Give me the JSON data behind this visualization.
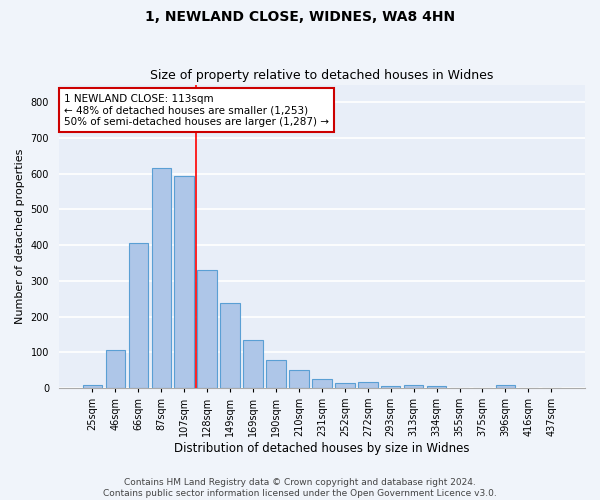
{
  "title1": "1, NEWLAND CLOSE, WIDNES, WA8 4HN",
  "title2": "Size of property relative to detached houses in Widnes",
  "xlabel": "Distribution of detached houses by size in Widnes",
  "ylabel": "Number of detached properties",
  "categories": [
    "25sqm",
    "46sqm",
    "66sqm",
    "87sqm",
    "107sqm",
    "128sqm",
    "149sqm",
    "169sqm",
    "190sqm",
    "210sqm",
    "231sqm",
    "252sqm",
    "272sqm",
    "293sqm",
    "313sqm",
    "334sqm",
    "355sqm",
    "375sqm",
    "396sqm",
    "416sqm",
    "437sqm"
  ],
  "values": [
    8,
    107,
    405,
    615,
    593,
    330,
    238,
    133,
    77,
    50,
    25,
    13,
    17,
    5,
    7,
    5,
    0,
    0,
    8,
    0,
    0
  ],
  "bar_color": "#aec6e8",
  "bar_edgecolor": "#5a9fd4",
  "redline_index": 4.5,
  "annotation_title": "1 NEWLAND CLOSE: 113sqm",
  "annotation_line1": "← 48% of detached houses are smaller (1,253)",
  "annotation_line2": "50% of semi-detached houses are larger (1,287) →",
  "annotation_box_color": "#ffffff",
  "annotation_box_edgecolor": "#cc0000",
  "ylim": [
    0,
    850
  ],
  "yticks": [
    0,
    100,
    200,
    300,
    400,
    500,
    600,
    700,
    800
  ],
  "footer1": "Contains HM Land Registry data © Crown copyright and database right 2024.",
  "footer2": "Contains public sector information licensed under the Open Government Licence v3.0.",
  "bg_color": "#e8eef8",
  "grid_color": "#ffffff",
  "fig_bg_color": "#f0f4fa",
  "title1_fontsize": 10,
  "title2_fontsize": 9,
  "xlabel_fontsize": 8.5,
  "ylabel_fontsize": 8,
  "tick_fontsize": 7,
  "footer_fontsize": 6.5,
  "annotation_fontsize": 7.5
}
